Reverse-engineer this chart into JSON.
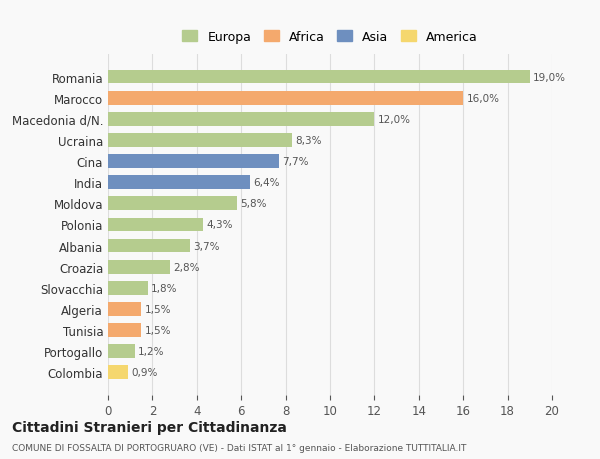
{
  "countries": [
    "Romania",
    "Marocco",
    "Macedonia d/N.",
    "Ucraina",
    "Cina",
    "India",
    "Moldova",
    "Polonia",
    "Albania",
    "Croazia",
    "Slovacchia",
    "Algeria",
    "Tunisia",
    "Portogallo",
    "Colombia"
  ],
  "values": [
    19.0,
    16.0,
    12.0,
    8.3,
    7.7,
    6.4,
    5.8,
    4.3,
    3.7,
    2.8,
    1.8,
    1.5,
    1.5,
    1.2,
    0.9
  ],
  "labels": [
    "19,0%",
    "16,0%",
    "12,0%",
    "8,3%",
    "7,7%",
    "6,4%",
    "5,8%",
    "4,3%",
    "3,7%",
    "2,8%",
    "1,8%",
    "1,5%",
    "1,5%",
    "1,2%",
    "0,9%"
  ],
  "continents": [
    "Europa",
    "Africa",
    "Europa",
    "Europa",
    "Asia",
    "Asia",
    "Europa",
    "Europa",
    "Europa",
    "Europa",
    "Europa",
    "Africa",
    "Africa",
    "Europa",
    "America"
  ],
  "colors": {
    "Europa": "#b5cc8e",
    "Africa": "#f4a96d",
    "Asia": "#6e8fbf",
    "America": "#f5d76e"
  },
  "legend_order": [
    "Europa",
    "Africa",
    "Asia",
    "America"
  ],
  "xlim": [
    0,
    20
  ],
  "xticks": [
    0,
    2,
    4,
    6,
    8,
    10,
    12,
    14,
    16,
    18,
    20
  ],
  "title": "Cittadini Stranieri per Cittadinanza",
  "subtitle": "COMUNE DI FOSSALTA DI PORTOGRUARO (VE) - Dati ISTAT al 1° gennaio - Elaborazione TUTTITALIA.IT",
  "background_color": "#f9f9f9",
  "grid_color": "#dddddd"
}
